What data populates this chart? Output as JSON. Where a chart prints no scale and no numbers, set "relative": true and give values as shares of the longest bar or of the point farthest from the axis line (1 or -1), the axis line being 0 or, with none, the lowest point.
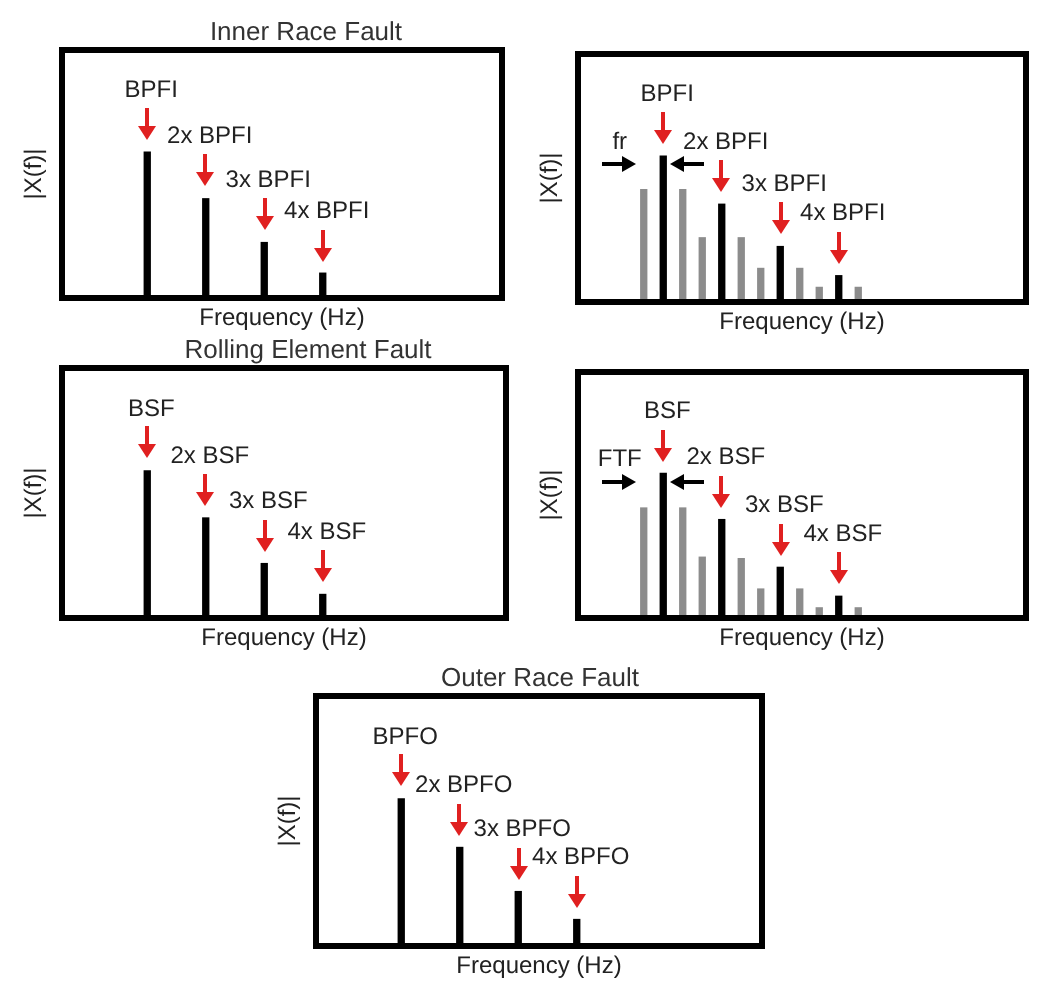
{
  "chart_data": [
    {
      "type": "bar",
      "title": "Inner Race Fault",
      "xlabel": "Frequency (Hz)",
      "ylabel": "|X(f)|",
      "relative": true,
      "tick_labels": false,
      "color": "#000000",
      "categories": [
        null,
        null,
        null,
        null
      ],
      "values": [
        1,
        0.68,
        0.38,
        0.17
      ],
      "annotations": [
        "BPFI",
        "2x BPFI",
        "3x BPFI",
        "4x BPFI"
      ]
    },
    {
      "type": "bar",
      "xlabel": "Frequency (Hz)",
      "ylabel": "|X(f)|",
      "relative": true,
      "tick_labels": false,
      "categories": [
        null,
        null,
        null,
        null,
        null,
        null,
        null,
        null,
        null,
        null,
        null,
        null
      ],
      "values": [
        0.77,
        1,
        0.77,
        0.44,
        0.67,
        0.44,
        0.23,
        0.38,
        0.23,
        0.1,
        0.18,
        0.1
      ],
      "colors": [
        "#8c8c8c",
        "#000000",
        "#8c8c8c",
        "#8c8c8c",
        "#000000",
        "#8c8c8c",
        "#8c8c8c",
        "#000000",
        "#8c8c8c",
        "#8c8c8c",
        "#000000",
        "#8c8c8c"
      ],
      "annotations": [
        "BPFI",
        "2x BPFI",
        "3x BPFI",
        "4x BPFI",
        "fr"
      ]
    },
    {
      "type": "bar",
      "title": "Rolling Element Fault",
      "xlabel": "Frequency (Hz)",
      "ylabel": "|X(f)|",
      "relative": true,
      "tick_labels": false,
      "color": "#000000",
      "categories": [
        null,
        null,
        null,
        null
      ],
      "values": [
        1,
        0.68,
        0.37,
        0.16
      ],
      "annotations": [
        "BSF",
        "2x BSF",
        "3x BSF",
        "4x BSF"
      ]
    },
    {
      "type": "bar",
      "xlabel": "Frequency (Hz)",
      "ylabel": "|X(f)|",
      "relative": true,
      "tick_labels": false,
      "categories": [
        null,
        null,
        null,
        null,
        null,
        null,
        null,
        null,
        null,
        null,
        null,
        null
      ],
      "values": [
        0.76,
        1,
        0.76,
        0.42,
        0.68,
        0.41,
        0.2,
        0.35,
        0.2,
        0.07,
        0.15,
        0.07
      ],
      "colors": [
        "#8c8c8c",
        "#000000",
        "#8c8c8c",
        "#8c8c8c",
        "#000000",
        "#8c8c8c",
        "#8c8c8c",
        "#000000",
        "#8c8c8c",
        "#8c8c8c",
        "#000000",
        "#8c8c8c"
      ],
      "annotations": [
        "BSF",
        "2x BSF",
        "3x BSF",
        "4x BSF",
        "FTF"
      ]
    },
    {
      "type": "bar",
      "title": "Outer Race Fault",
      "xlabel": "Frequency (Hz)",
      "ylabel": "|X(f)|",
      "relative": true,
      "tick_labels": false,
      "color": "#000000",
      "categories": [
        null,
        null,
        null,
        null
      ],
      "values": [
        1,
        0.67,
        0.37,
        0.18
      ],
      "annotations": [
        "BPFO",
        "2x BPFO",
        "3x BPFO",
        "4x BPFO"
      ]
    }
  ]
}
